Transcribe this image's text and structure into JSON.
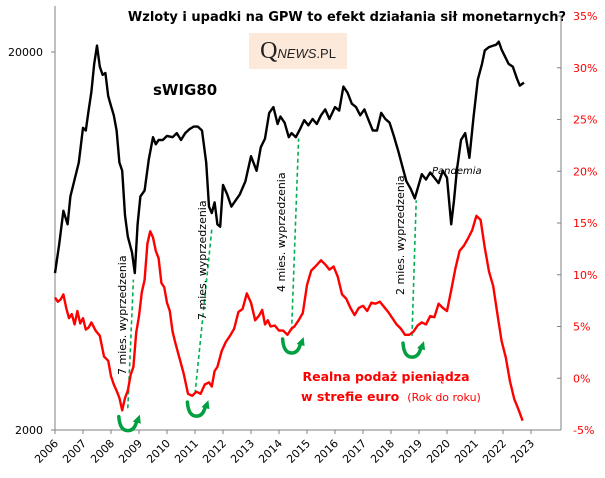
{
  "chart_data": {
    "type": "line",
    "title": "Wzloty i upadki na GPW to efekt działania sił monetarnych?",
    "logo": {
      "q": "Q",
      "news": "NEWS",
      "pl": ".PL"
    },
    "xlabel": "",
    "x_ticks": [
      "2006",
      "2007",
      "2008",
      "2009",
      "2010",
      "2011",
      "2012",
      "2013",
      "2014",
      "2015",
      "2016",
      "2017",
      "2018",
      "2019",
      "2020",
      "2021",
      "2022",
      "2023"
    ],
    "xlim": [
      2006,
      2023
    ],
    "left_axis": {
      "scale": "log",
      "ylim": [
        2000,
        20000
      ],
      "ticks": [
        "20000",
        "2000"
      ]
    },
    "right_axis": {
      "ylim": [
        -5,
        35
      ],
      "ticks": [
        "35%",
        "30%",
        "25%",
        "20%",
        "15%",
        "10%",
        "5%",
        "0%",
        "-5%"
      ],
      "tick_values": [
        35,
        30,
        25,
        20,
        15,
        10,
        5,
        0,
        -5
      ],
      "color": "#ff0000"
    },
    "grid": false,
    "series": [
      {
        "name": "sWIG80",
        "axis": "left",
        "color": "#000000",
        "x": [
          2006.0,
          2006.15,
          2006.3,
          2006.45,
          2006.55,
          2006.7,
          2006.85,
          2007.0,
          2007.1,
          2007.2,
          2007.3,
          2007.4,
          2007.5,
          2007.6,
          2007.7,
          2007.8,
          2007.9,
          2008.0,
          2008.1,
          2008.2,
          2008.3,
          2008.4,
          2008.5,
          2008.6,
          2008.75,
          2008.85,
          2008.95,
          2009.05,
          2009.2,
          2009.35,
          2009.5,
          2009.6,
          2009.7,
          2009.85,
          2010.0,
          2010.2,
          2010.35,
          2010.5,
          2010.65,
          2010.8,
          2010.95,
          2011.1,
          2011.25,
          2011.4,
          2011.5,
          2011.6,
          2011.7,
          2011.8,
          2011.9,
          2012.0,
          2012.15,
          2012.3,
          2012.45,
          2012.6,
          2012.8,
          2013.0,
          2013.2,
          2013.35,
          2013.5,
          2013.65,
          2013.8,
          2013.95,
          2014.05,
          2014.2,
          2014.35,
          2014.45,
          2014.6,
          2014.75,
          2014.9,
          2015.05,
          2015.2,
          2015.35,
          2015.5,
          2015.65,
          2015.8,
          2016.0,
          2016.15,
          2016.3,
          2016.45,
          2016.6,
          2016.75,
          2016.9,
          2017.05,
          2017.2,
          2017.35,
          2017.5,
          2017.65,
          2017.8,
          2017.95,
          2018.1,
          2018.25,
          2018.4,
          2018.55,
          2018.7,
          2018.85,
          2018.95,
          2019.1,
          2019.25,
          2019.4,
          2019.55,
          2019.7,
          2019.85,
          2020.0,
          2020.15,
          2020.25,
          2020.35,
          2020.5,
          2020.65,
          2020.8,
          2020.95,
          2021.1,
          2021.25,
          2021.35,
          2021.5,
          2021.65,
          2021.75,
          2021.85,
          2021.95,
          2022.05,
          2022.2,
          2022.35,
          2022.5,
          2022.6,
          2022.75
        ],
        "values": [
          5200,
          6200,
          7600,
          7000,
          8300,
          9200,
          10200,
          12600,
          12400,
          14000,
          15700,
          18600,
          20800,
          18300,
          17400,
          17600,
          15300,
          14400,
          13600,
          12400,
          10200,
          9700,
          7400,
          6500,
          5900,
          5200,
          7000,
          8300,
          8600,
          10400,
          11900,
          11400,
          11700,
          11700,
          12000,
          11900,
          12200,
          11700,
          12200,
          12500,
          12700,
          12700,
          12400,
          10200,
          7800,
          7500,
          8000,
          7000,
          6900,
          8900,
          8400,
          7800,
          8100,
          8400,
          9100,
          10600,
          9700,
          11200,
          11800,
          13800,
          14300,
          12900,
          13500,
          13000,
          11900,
          12200,
          11900,
          12500,
          13200,
          12800,
          13300,
          12900,
          13600,
          14100,
          13300,
          14300,
          14000,
          16200,
          15600,
          14600,
          14300,
          13600,
          14100,
          13200,
          12400,
          12400,
          13800,
          13300,
          13000,
          12000,
          11000,
          10000,
          9100,
          8700,
          8200,
          8700,
          9500,
          9200,
          9600,
          9300,
          9000,
          9700,
          9300,
          7000,
          8100,
          9700,
          11700,
          12200,
          10500,
          13500,
          16900,
          18600,
          20200,
          20600,
          20800,
          20900,
          21300,
          20300,
          19600,
          18600,
          18300,
          17000,
          16300,
          16600
        ]
      },
      {
        "name": "Realna podaż pieniądza w strefie euro (Rok do roku)",
        "axis": "right",
        "color": "#ff0000",
        "x": [
          2006.0,
          2006.1,
          2006.2,
          2006.3,
          2006.4,
          2006.5,
          2006.6,
          2006.7,
          2006.8,
          2006.9,
          2007.0,
          2007.1,
          2007.2,
          2007.3,
          2007.45,
          2007.6,
          2007.75,
          2007.9,
          2008.0,
          2008.1,
          2008.2,
          2008.3,
          2008.4,
          2008.5,
          2008.6,
          2008.7,
          2008.8,
          2008.9,
          2009.0,
          2009.1,
          2009.2,
          2009.3,
          2009.4,
          2009.5,
          2009.6,
          2009.7,
          2009.8,
          2009.9,
          2010.0,
          2010.1,
          2010.2,
          2010.3,
          2010.45,
          2010.6,
          2010.75,
          2010.9,
          2011.05,
          2011.2,
          2011.35,
          2011.5,
          2011.6,
          2011.7,
          2011.8,
          2011.95,
          2012.1,
          2012.25,
          2012.4,
          2012.55,
          2012.7,
          2012.85,
          2013.0,
          2013.15,
          2013.3,
          2013.4,
          2013.5,
          2013.6,
          2013.7,
          2013.85,
          2014.0,
          2014.15,
          2014.3,
          2014.45,
          2014.55,
          2014.7,
          2014.85,
          2015.0,
          2015.15,
          2015.3,
          2015.5,
          2015.65,
          2015.8,
          2015.95,
          2016.1,
          2016.25,
          2016.4,
          2016.55,
          2016.7,
          2016.85,
          2017.0,
          2017.15,
          2017.3,
          2017.45,
          2017.6,
          2017.75,
          2017.9,
          2018.05,
          2018.2,
          2018.35,
          2018.5,
          2018.65,
          2018.8,
          2018.95,
          2019.1,
          2019.25,
          2019.4,
          2019.55,
          2019.7,
          2019.85,
          2020.0,
          2020.15,
          2020.3,
          2020.45,
          2020.6,
          2020.75,
          2020.9,
          2021.05,
          2021.2,
          2021.35,
          2021.5,
          2021.65,
          2021.8,
          2021.95,
          2022.1,
          2022.25,
          2022.4,
          2022.55,
          2022.7
        ],
        "values": [
          7.8,
          7.4,
          7.6,
          8.1,
          6.8,
          5.8,
          6.2,
          5.2,
          6.5,
          5.3,
          5.8,
          4.7,
          4.9,
          5.4,
          4.6,
          4.1,
          2.1,
          1.7,
          0.2,
          -0.6,
          -1.2,
          -1.9,
          -3.1,
          -1.9,
          -1.2,
          0.3,
          1.1,
          4.4,
          6.0,
          8.3,
          9.5,
          13.0,
          14.2,
          13.6,
          12.3,
          11.6,
          9.2,
          8.8,
          7.3,
          6.5,
          4.5,
          3.4,
          1.9,
          0.4,
          -1.5,
          -1.7,
          -1.3,
          -1.5,
          -0.6,
          -0.4,
          -0.8,
          0.7,
          1.1,
          2.6,
          3.5,
          4.1,
          4.8,
          6.4,
          6.7,
          8.2,
          7.3,
          5.6,
          6.1,
          6.6,
          5.2,
          5.6,
          5.0,
          5.1,
          4.6,
          4.6,
          4.2,
          4.8,
          5.0,
          5.6,
          6.3,
          9.0,
          10.4,
          10.8,
          11.4,
          11.0,
          10.5,
          10.8,
          9.8,
          8.1,
          7.7,
          6.8,
          6.1,
          6.8,
          7.0,
          6.5,
          7.3,
          7.2,
          7.4,
          6.9,
          6.4,
          5.8,
          5.2,
          4.8,
          4.2,
          4.2,
          4.5,
          5.1,
          5.4,
          5.2,
          6.0,
          5.9,
          7.2,
          6.8,
          6.5,
          8.5,
          10.6,
          12.3,
          12.8,
          13.5,
          14.3,
          15.7,
          15.3,
          12.6,
          10.3,
          8.9,
          6.2,
          3.6,
          2.0,
          -0.3,
          -2.0,
          -3.0,
          -4.1
        ]
      }
    ],
    "annotations": {
      "series_label": "sWIG80",
      "pandemia": "Pandemia",
      "lead_labels": [
        "7 mies. wyprzedzenia",
        "7 mies. wyprzedzenia",
        "4 mies. wyprzedzenia",
        "2 mies. wyprzedzenia"
      ],
      "red_label_line1": "Realna podaż pieniądza",
      "red_label_line2_bold": "w strefie euro",
      "red_label_line2_small": "(Rok do roku)"
    },
    "lead_lines": [
      {
        "from_year": 2008.6,
        "from_pct": -2.9,
        "to_year": 2008.8,
        "to_value": 5000
      },
      {
        "from_year": 2011.0,
        "from_pct": -1.5,
        "to_year": 2011.6,
        "to_value": 6800
      },
      {
        "from_year": 2014.45,
        "from_pct": 4.6,
        "to_year": 2014.7,
        "to_value": 11800
      },
      {
        "from_year": 2018.75,
        "from_pct": 4.1,
        "to_year": 2018.9,
        "to_value": 8100
      }
    ],
    "trough_arrows": [
      {
        "year": 2008.6,
        "pct": -3.9
      },
      {
        "year": 2011.05,
        "pct": -2.5
      },
      {
        "year": 2014.45,
        "pct": 3.6
      },
      {
        "year": 2018.75,
        "pct": 3.2
      }
    ],
    "colors": {
      "lead_line": "#00b050",
      "arrow": "#00a040",
      "axis": "#808080"
    }
  }
}
